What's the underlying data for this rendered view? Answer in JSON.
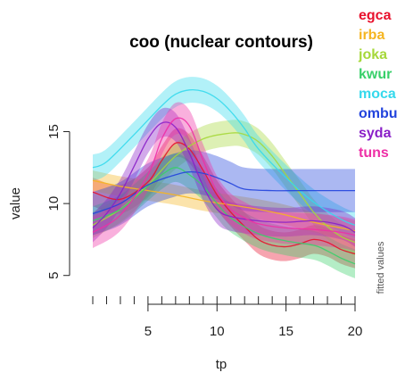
{
  "chart_data": {
    "type": "line",
    "title": "coo (nuclear contours)",
    "xlabel": "tp",
    "ylabel": "value",
    "side_note": "fitted values",
    "xlim": [
      1,
      20
    ],
    "ylim": [
      4.3,
      19.5
    ],
    "x_ticks": [
      5,
      10,
      15,
      20
    ],
    "y_ticks": [
      5,
      10,
      15
    ],
    "x_minor_ticks": [
      1,
      2,
      3,
      4,
      5,
      6,
      7,
      8,
      9,
      10,
      11,
      12,
      13,
      14,
      15,
      16,
      17,
      18,
      19,
      20
    ],
    "bands": "shaded confidence band around each fitted line",
    "legend_position": "top-right, outside plot",
    "series": [
      {
        "name": "egca",
        "color": "#e8112d",
        "x": [
          1,
          3,
          5,
          6,
          7,
          8,
          9,
          10,
          11,
          12,
          13,
          14,
          15,
          16,
          17,
          18,
          19,
          20
        ],
        "y": [
          10.8,
          10.3,
          11.5,
          13.0,
          14.2,
          13.8,
          12.3,
          10.6,
          9.4,
          8.4,
          7.5,
          7.1,
          7.0,
          7.2,
          7.5,
          7.3,
          6.8,
          6.5
        ],
        "band": 1.0
      },
      {
        "name": "irba",
        "color": "#f5b521",
        "x": [
          1,
          3,
          5,
          7,
          9,
          11,
          13,
          15,
          17,
          19,
          20
        ],
        "y": [
          11.6,
          11.2,
          10.9,
          10.6,
          10.2,
          9.9,
          9.6,
          9.2,
          8.7,
          8.3,
          8.1
        ],
        "band": 0.7
      },
      {
        "name": "joka",
        "color": "#a6d83a",
        "x": [
          1,
          3,
          5,
          7,
          9,
          11,
          12,
          13,
          14,
          15,
          16,
          17,
          18,
          19,
          20
        ],
        "y": [
          8.5,
          9.6,
          11.3,
          13.3,
          14.5,
          14.9,
          14.8,
          14.3,
          13.3,
          12.0,
          10.7,
          9.4,
          8.4,
          7.7,
          7.3
        ],
        "band": 0.9
      },
      {
        "name": "kwur",
        "color": "#39d06a",
        "x": [
          1,
          3,
          5,
          6,
          7,
          8,
          9,
          10,
          11,
          13,
          15,
          17,
          18,
          19,
          20
        ],
        "y": [
          8.8,
          9.6,
          11.2,
          12.0,
          12.5,
          12.0,
          11.2,
          10.0,
          9.0,
          7.9,
          7.4,
          7.1,
          6.7,
          6.2,
          5.8
        ],
        "band": 1.0
      },
      {
        "name": "moca",
        "color": "#35d9ec",
        "x": [
          1,
          2,
          4,
          6,
          7,
          8,
          9,
          10,
          11,
          12,
          13,
          15,
          17,
          19,
          20
        ],
        "y": [
          12.5,
          12.9,
          14.8,
          16.8,
          17.6,
          17.9,
          17.8,
          17.3,
          16.4,
          15.2,
          13.8,
          11.8,
          10.1,
          8.9,
          8.5
        ],
        "band": 0.9
      },
      {
        "name": "ombu",
        "color": "#2244dd",
        "x": [
          1,
          3,
          5,
          7,
          8,
          9,
          10,
          11,
          12,
          14,
          16,
          18,
          20
        ],
        "y": [
          9.3,
          10.0,
          11.3,
          12.0,
          12.2,
          12.1,
          11.8,
          11.4,
          11.0,
          10.9,
          10.9,
          10.9,
          10.9
        ],
        "band": 1.5
      },
      {
        "name": "syda",
        "color": "#8a1fc8",
        "x": [
          1,
          2,
          3,
          4,
          5,
          6,
          7,
          8,
          9,
          10,
          11,
          13,
          15,
          17,
          19,
          20
        ],
        "y": [
          8.3,
          9.3,
          10.7,
          12.6,
          14.5,
          15.6,
          15.3,
          13.5,
          11.2,
          9.6,
          9.1,
          8.8,
          8.7,
          8.8,
          8.5,
          8.0
        ],
        "band": 1.0
      },
      {
        "name": "tuns",
        "color": "#ee2fa6",
        "x": [
          1,
          3,
          5,
          6,
          7,
          8,
          9,
          10,
          11,
          12,
          13,
          15,
          17,
          19,
          20
        ],
        "y": [
          8.0,
          9.2,
          12.0,
          14.5,
          15.9,
          15.4,
          13.0,
          10.8,
          9.6,
          9.0,
          8.6,
          8.3,
          8.2,
          8.0,
          7.8
        ],
        "band": 1.1
      }
    ]
  }
}
